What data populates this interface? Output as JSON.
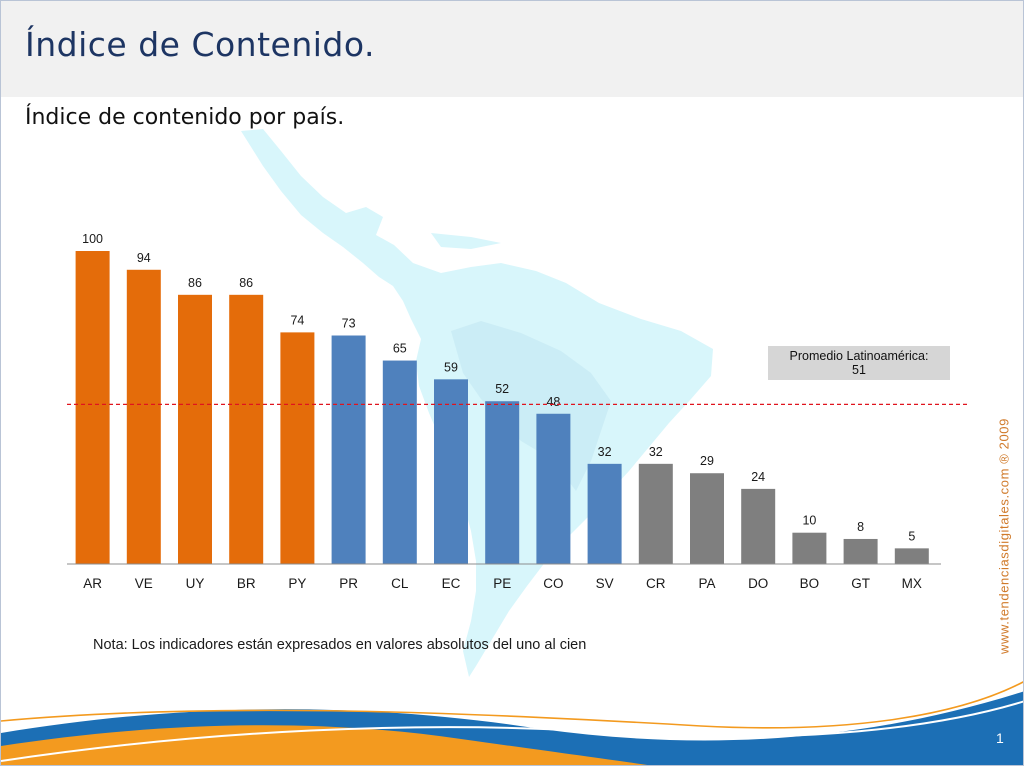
{
  "slide": {
    "title": "Índice de Contenido.",
    "subtitle": "Índice de contenido por país.",
    "note": "Nota: Los indicadores están expresados en valores absolutos del uno al cien",
    "watermark": "www.tendenciasdigitales.com ® 2009",
    "page_number": "1"
  },
  "average": {
    "label": "Promedio Latinoamérica:",
    "value": 51
  },
  "colors": {
    "above_group": "#e46c0a",
    "middle_group": "#4f81bd",
    "lower_group": "#7f7f7f",
    "average_line": "#e0141e",
    "title": "#1d3563",
    "map": "#d8f6fb",
    "swoosh_blue": "#1c6fb5",
    "swoosh_orange": "#f39a1f"
  },
  "chart_data": {
    "type": "bar",
    "categories": [
      "AR",
      "VE",
      "UY",
      "BR",
      "PY",
      "PR",
      "CL",
      "EC",
      "PE",
      "CO",
      "SV",
      "CR",
      "PA",
      "DO",
      "BO",
      "GT",
      "MX"
    ],
    "values": [
      100,
      94,
      86,
      86,
      74,
      73,
      65,
      59,
      52,
      48,
      32,
      32,
      29,
      24,
      10,
      8,
      5
    ],
    "color_groups": [
      "orange",
      "orange",
      "orange",
      "orange",
      "orange",
      "blue",
      "blue",
      "blue",
      "blue",
      "blue",
      "blue",
      "gray",
      "gray",
      "gray",
      "gray",
      "gray",
      "gray"
    ],
    "ylim": [
      0,
      100
    ],
    "reference_line": 51,
    "grid": false,
    "legend": "none",
    "title": "",
    "xlabel": "",
    "ylabel": ""
  }
}
